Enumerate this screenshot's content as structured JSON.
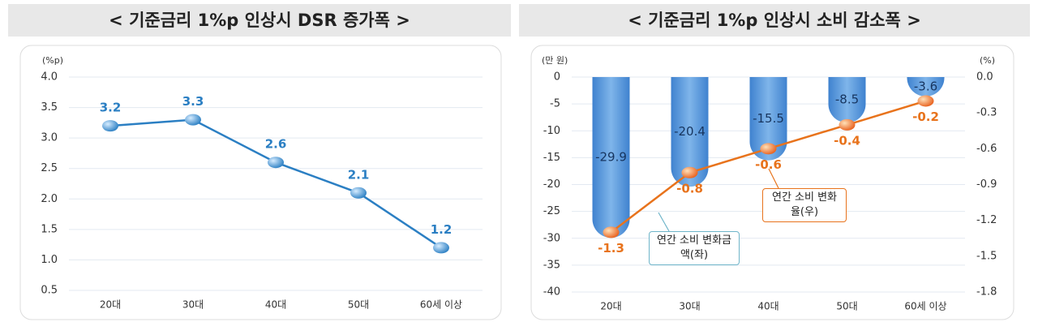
{
  "chart_data": [
    {
      "type": "line",
      "title": "< 기준금리 1%p 인상시 DSR 증가폭 >",
      "y_label": "(%p)",
      "categories": [
        "20대",
        "30대",
        "40대",
        "50대",
        "60세 이상"
      ],
      "values": [
        3.2,
        3.3,
        2.6,
        2.1,
        1.2
      ],
      "color": "#2b7fc3",
      "ylim": [
        0.5,
        4.0
      ],
      "yticks": [
        0.5,
        {
          "value": 1,
          "label": "1.0"
        },
        1.5,
        {
          "value": 2,
          "label": "2.0"
        },
        2.5,
        {
          "value": 3,
          "label": "3.0"
        },
        3.5,
        {
          "value": 4,
          "label": "4.0"
        }
      ],
      "grid": true
    },
    {
      "type": "combo",
      "title": "< 기준금리 1%p 인상시 소비 감소폭 >",
      "y_label": "(만 원)",
      "y2_label": "(%)",
      "categories": [
        "20대",
        "30대",
        "40대",
        "50대",
        "60세 이상"
      ],
      "series": [
        {
          "name": "연간 소비 변화금액(좌)",
          "kind": "bar",
          "color": "#4a8fd6",
          "values": [
            -29.9,
            -20.4,
            -15.5,
            -8.5,
            -3.6
          ]
        },
        {
          "name": "연간 소비 변화율(우)",
          "kind": "line",
          "axis": "y2",
          "color": "#e8731c",
          "values": [
            -1.3,
            -0.8,
            -0.6,
            -0.4,
            -0.2
          ]
        }
      ],
      "ylim": [
        -40,
        0
      ],
      "yticks": [
        0,
        -5,
        -10,
        -15,
        -20,
        -25,
        -30,
        -35,
        -40
      ],
      "y2lim": [
        -1.8,
        0
      ],
      "y2ticks": [
        {
          "value": 0,
          "label": "0.0"
        },
        -0.3,
        -0.6,
        -0.9,
        -1.2,
        -1.5,
        -1.8
      ],
      "grid": true
    }
  ]
}
